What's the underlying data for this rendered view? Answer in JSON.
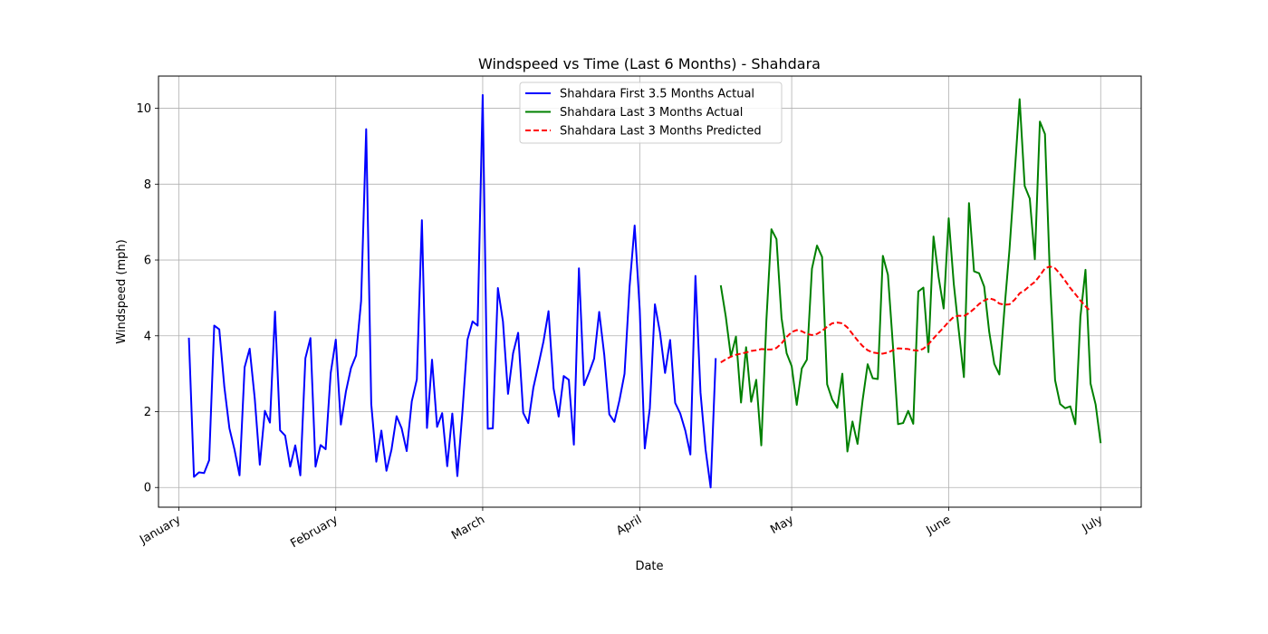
{
  "chart_data": {
    "type": "line",
    "title": "Windspeed vs Time (Last 6 Months) - Shahdara",
    "xlabel": "Date",
    "ylabel": "Windspeed (mph)",
    "xlim": [
      "2023-12-28",
      "2024-07-09"
    ],
    "ylim": [
      -0.52,
      10.85
    ],
    "x_ticks": [
      {
        "date": "2024-01-01",
        "label": "January"
      },
      {
        "date": "2024-02-01",
        "label": "February"
      },
      {
        "date": "2024-03-01",
        "label": "March"
      },
      {
        "date": "2024-04-01",
        "label": "April"
      },
      {
        "date": "2024-05-01",
        "label": "May"
      },
      {
        "date": "2024-06-01",
        "label": "June"
      },
      {
        "date": "2024-07-01",
        "label": "July"
      }
    ],
    "y_ticks": [
      0,
      2,
      4,
      6,
      8,
      10
    ],
    "grid": true,
    "legend_position": "top-center",
    "series": [
      {
        "name": "Shahdara First 3.5 Months Actual",
        "color": "#0000ff",
        "style": "solid",
        "start_date": "2024-01-03",
        "values": [
          3.95,
          0.28,
          0.4,
          0.38,
          0.72,
          4.27,
          4.17,
          2.65,
          1.56,
          1.0,
          0.32,
          3.17,
          3.66,
          2.35,
          0.6,
          2.02,
          1.71,
          4.64,
          1.51,
          1.37,
          0.55,
          1.11,
          0.32,
          3.41,
          3.94,
          0.55,
          1.12,
          1.01,
          3.02,
          3.9,
          1.66,
          2.53,
          3.15,
          3.48,
          4.92,
          9.45,
          2.2,
          0.68,
          1.5,
          0.44,
          1.0,
          1.88,
          1.56,
          0.96,
          2.27,
          2.85,
          7.05,
          1.57,
          3.37,
          1.6,
          1.96,
          0.56,
          1.95,
          0.3,
          2.0,
          3.9,
          4.38,
          4.27,
          10.35,
          1.55,
          1.56,
          5.26,
          4.38,
          2.47,
          3.54,
          4.08,
          1.97,
          1.7,
          2.63,
          3.23,
          3.85,
          4.65,
          2.61,
          1.87,
          2.94,
          2.84,
          1.13,
          5.78,
          2.7,
          3.03,
          3.4,
          4.63,
          3.5,
          1.93,
          1.73,
          2.3,
          3.0,
          5.3,
          6.91,
          4.7,
          1.03,
          2.09,
          4.83,
          4.09,
          3.02,
          3.89,
          2.23,
          1.95,
          1.5,
          0.87,
          5.58,
          2.5,
          1.0,
          0.0,
          3.41
        ]
      },
      {
        "name": "Shahdara Last 3 Months Actual",
        "color": "#008000",
        "style": "solid",
        "start_date": "2024-04-17",
        "values": [
          5.33,
          4.5,
          3.45,
          3.98,
          2.24,
          3.7,
          2.26,
          2.84,
          1.11,
          4.39,
          6.81,
          6.55,
          4.47,
          3.54,
          3.2,
          2.18,
          3.14,
          3.37,
          5.77,
          6.38,
          6.08,
          2.72,
          2.32,
          2.1,
          3.0,
          0.95,
          1.74,
          1.15,
          2.3,
          3.25,
          2.88,
          2.86,
          6.11,
          5.61,
          3.72,
          1.67,
          1.7,
          2.02,
          1.68,
          5.17,
          5.27,
          3.57,
          6.62,
          5.55,
          4.72,
          7.1,
          5.37,
          4.12,
          2.91,
          7.5,
          5.7,
          5.65,
          5.3,
          4.1,
          3.26,
          2.98,
          4.7,
          6.28,
          8.23,
          10.24,
          7.95,
          7.62,
          6.02,
          9.65,
          9.32,
          5.5,
          2.83,
          2.2,
          2.09,
          2.14,
          1.67,
          4.5,
          5.74,
          2.74,
          2.19,
          1.17
        ]
      },
      {
        "name": "Shahdara Last 3 Months Predicted",
        "color": "#ff0000",
        "style": "dashed",
        "start_date": "2024-04-17",
        "values": [
          3.3,
          3.38,
          3.45,
          3.5,
          3.53,
          3.56,
          3.6,
          3.62,
          3.65,
          3.64,
          3.64,
          3.68,
          3.8,
          3.97,
          4.1,
          4.15,
          4.12,
          4.05,
          4.02,
          4.05,
          4.13,
          4.24,
          4.33,
          4.35,
          4.33,
          4.22,
          4.05,
          3.88,
          3.73,
          3.62,
          3.56,
          3.54,
          3.53,
          3.56,
          3.62,
          3.67,
          3.66,
          3.65,
          3.62,
          3.61,
          3.66,
          3.78,
          3.93,
          4.08,
          4.22,
          4.37,
          4.5,
          4.53,
          4.52,
          4.6,
          4.71,
          4.84,
          4.93,
          4.99,
          4.95,
          4.85,
          4.82,
          4.83,
          4.95,
          5.12,
          5.2,
          5.32,
          5.42,
          5.59,
          5.78,
          5.83,
          5.78,
          5.63,
          5.45,
          5.26,
          5.1,
          4.93,
          4.78,
          4.65
        ]
      }
    ]
  }
}
